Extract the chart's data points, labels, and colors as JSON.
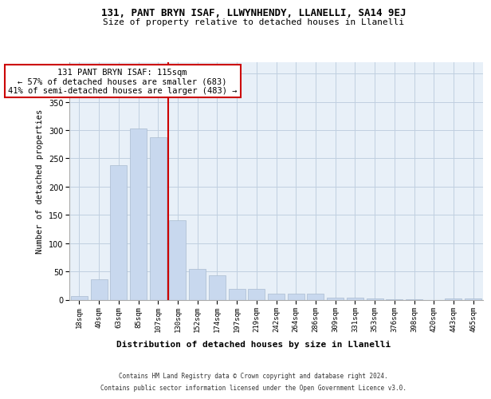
{
  "title1": "131, PANT BRYN ISAF, LLWYNHENDY, LLANELLI, SA14 9EJ",
  "title2": "Size of property relative to detached houses in Llanelli",
  "xlabel": "Distribution of detached houses by size in Llanelli",
  "ylabel": "Number of detached properties",
  "categories": [
    "18sqm",
    "40sqm",
    "63sqm",
    "85sqm",
    "107sqm",
    "130sqm",
    "152sqm",
    "174sqm",
    "197sqm",
    "219sqm",
    "242sqm",
    "264sqm",
    "286sqm",
    "309sqm",
    "331sqm",
    "353sqm",
    "376sqm",
    "398sqm",
    "420sqm",
    "443sqm",
    "465sqm"
  ],
  "values": [
    7,
    36,
    238,
    303,
    288,
    140,
    55,
    43,
    19,
    19,
    10,
    11,
    10,
    4,
    4,
    2,
    1,
    1,
    0,
    2,
    2
  ],
  "bar_color": "#c8d8ee",
  "bar_edge_color": "#aabbd0",
  "vline_color": "#cc0000",
  "vline_index": 4.5,
  "annotation_text": "131 PANT BRYN ISAF: 115sqm\n← 57% of detached houses are smaller (683)\n41% of semi-detached houses are larger (483) →",
  "annotation_box_color": "#ffffff",
  "annotation_box_edge": "#cc0000",
  "footer_line1": "Contains HM Land Registry data © Crown copyright and database right 2024.",
  "footer_line2": "Contains public sector information licensed under the Open Government Licence v3.0.",
  "ylim_max": 420,
  "yticks": [
    0,
    50,
    100,
    150,
    200,
    250,
    300,
    350,
    400
  ],
  "grid_color": "#c0cfe0",
  "bg_color": "#e8f0f8",
  "title1_fontsize": 9,
  "title2_fontsize": 8,
  "tick_fontsize": 6.5,
  "ylabel_fontsize": 7.5,
  "xlabel_fontsize": 8,
  "annotation_fontsize": 7.5,
  "footer_fontsize": 5.5
}
